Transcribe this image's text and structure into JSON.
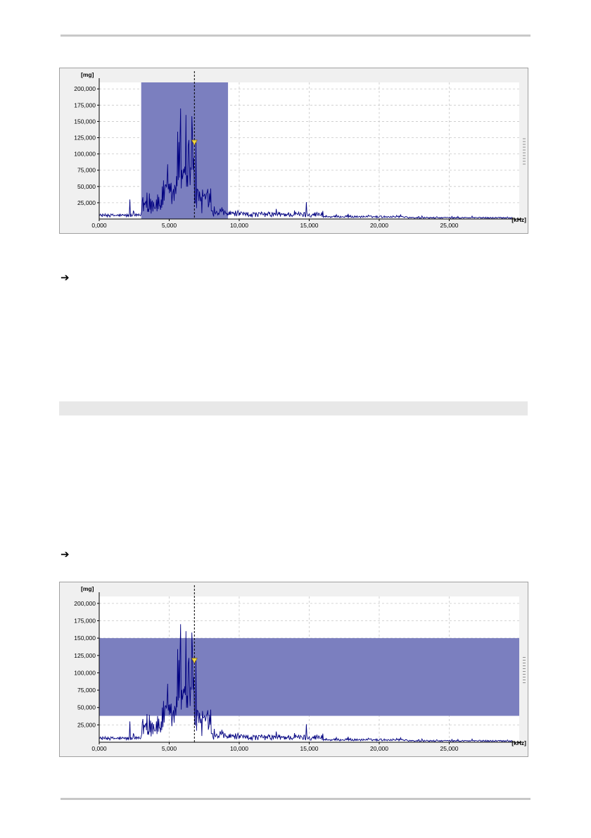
{
  "page": {
    "arrow_glyph": "➔"
  },
  "chart_data": [
    {
      "type": "line",
      "ylabel": "[mg]",
      "xlabel": "[kHz]",
      "xlim": [
        0,
        30000
      ],
      "ylim": [
        0,
        210000
      ],
      "x_ticks": [
        0,
        5000,
        10000,
        15000,
        20000,
        25000
      ],
      "x_tick_labels": [
        "0,000",
        "5,000",
        "10,000",
        "15,000",
        "20,000",
        "25,000"
      ],
      "y_ticks": [
        25000,
        50000,
        75000,
        100000,
        125000,
        150000,
        175000,
        200000
      ],
      "y_tick_labels": [
        "25,000",
        "50,000",
        "75,000",
        "100,000",
        "125,000",
        "150,000",
        "175,000",
        "200,000"
      ],
      "grid": true,
      "line_color": "#000080",
      "highlight": {
        "x_start": 3000,
        "x_end": 9200,
        "y_start": 0,
        "y_end": 210000,
        "color": "#7b7fbf"
      },
      "cursor_x": 6800,
      "marker": {
        "x": 6800,
        "y": 117000,
        "color": "#f0d840"
      }
    },
    {
      "type": "line",
      "ylabel": "[mg]",
      "xlabel": "[kHz]",
      "xlim": [
        0,
        30000
      ],
      "ylim": [
        0,
        210000
      ],
      "x_ticks": [
        0,
        5000,
        10000,
        15000,
        20000,
        25000
      ],
      "x_tick_labels": [
        "0,000",
        "5,000",
        "10,000",
        "15,000",
        "20,000",
        "25,000"
      ],
      "y_ticks": [
        25000,
        50000,
        75000,
        100000,
        125000,
        150000,
        175000,
        200000
      ],
      "y_tick_labels": [
        "25,000",
        "50,000",
        "75,000",
        "100,000",
        "125,000",
        "150,000",
        "175,000",
        "200,000"
      ],
      "grid": true,
      "line_color": "#000080",
      "highlight": {
        "x_start": 0,
        "x_end": 30000,
        "y_start": 38000,
        "y_end": 150000,
        "color": "#7b7fbf"
      },
      "cursor_x": 6800,
      "marker": {
        "x": 6800,
        "y": 117000,
        "color": "#f0d840"
      }
    }
  ]
}
